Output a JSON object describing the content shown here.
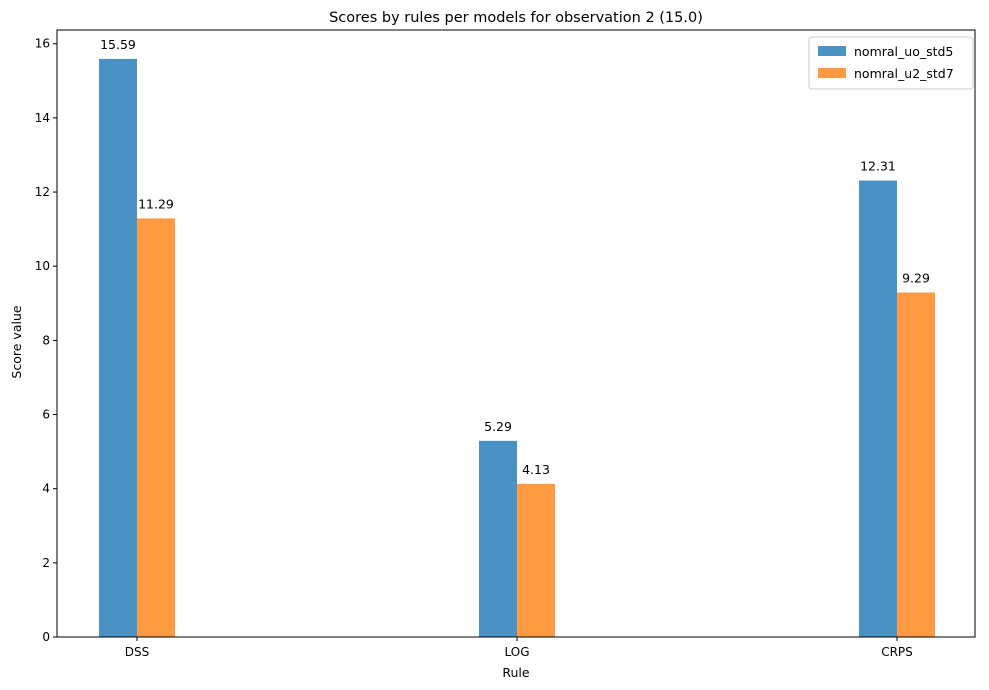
{
  "chart_data": {
    "type": "bar",
    "title": "Scores by rules per models for observation 2 (15.0)",
    "xlabel": "Rule",
    "ylabel": "Score value",
    "categories": [
      "DSS",
      "LOG",
      "CRPS"
    ],
    "series": [
      {
        "name": "nomral_uo_std5",
        "values": [
          15.59,
          5.29,
          12.31
        ],
        "labels": [
          "15.59",
          "5.29",
          "12.31"
        ],
        "color": "#4a92c3"
      },
      {
        "name": "nomral_u2_std7",
        "values": [
          11.29,
          4.13,
          9.29
        ],
        "labels": [
          "11.29",
          "4.13",
          "9.29"
        ],
        "color": "#ff9a42"
      }
    ],
    "ylim": [
      0,
      16.37
    ],
    "yticks": [
      0,
      2,
      4,
      6,
      8,
      10,
      12,
      14,
      16
    ],
    "grid": false,
    "legend": "top-right"
  }
}
